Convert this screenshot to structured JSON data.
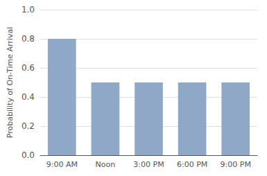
{
  "chart_data": {
    "type": "bar",
    "categories": [
      "9:00 AM",
      "Noon",
      "3:00 PM",
      "6:00 PM",
      "9:00 PM"
    ],
    "values": [
      0.8,
      0.5,
      0.5,
      0.5,
      0.5
    ],
    "color": "#8fa8c8",
    "ylabel": "Probability of On-Time Arrival",
    "ylim": [
      0.0,
      1.0
    ],
    "yticks": [
      {
        "value": 0,
        "label": "0.0"
      },
      0.2,
      0.4,
      0.6,
      0.8,
      {
        "value": 1,
        "label": "1.0"
      }
    ],
    "grid": true
  }
}
